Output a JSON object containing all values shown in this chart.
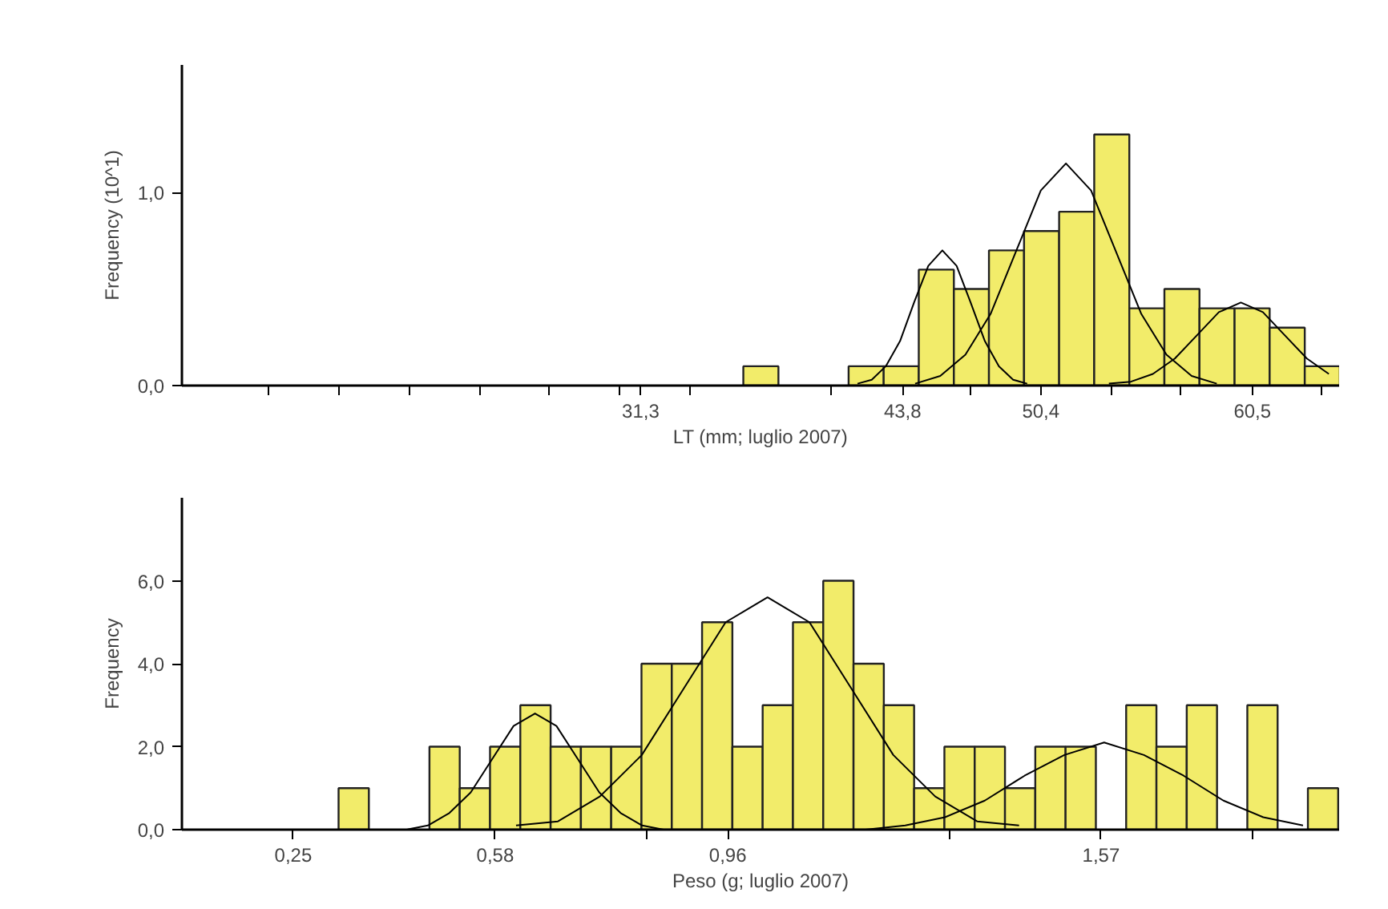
{
  "chart_data": [
    {
      "type": "histogram",
      "xlabel": "LT (mm; luglio 2007)",
      "ylabel": "Frequency (10^1)",
      "color": "#f2ec6a",
      "bins": [
        36.2,
        37.875,
        39.55,
        41.225,
        42.9,
        44.575,
        46.25,
        47.925,
        49.6,
        51.275,
        52.95,
        54.625,
        56.3,
        57.975,
        59.65,
        61.325,
        63.0,
        64.675
      ],
      "values": [
        0.1,
        0,
        0,
        0.1,
        0.1,
        0.6,
        0.5,
        0.7,
        0.8,
        0.9,
        1.3,
        0.4,
        0.5,
        0.4,
        0.4,
        0.3,
        0.1
      ],
      "series": [
        {
          "type": "line",
          "color": "#000000",
          "x": [
            41.65,
            42.33,
            43.0,
            43.68,
            44.35,
            45.03,
            45.7,
            46.38,
            47.05,
            47.73,
            48.4,
            49.08,
            49.75
          ],
          "values": [
            0.01,
            0.03,
            0.1,
            0.23,
            0.43,
            0.62,
            0.7,
            0.62,
            0.43,
            0.23,
            0.1,
            0.03,
            0.01
          ]
        },
        {
          "type": "line",
          "color": "#000000",
          "x": [
            44.4,
            45.6,
            46.8,
            48.0,
            49.2,
            50.4,
            51.6,
            52.8,
            54.0,
            55.2,
            56.4,
            57.6,
            58.8
          ],
          "values": [
            0.01,
            0.05,
            0.16,
            0.37,
            0.69,
            1.01,
            1.15,
            1.01,
            0.69,
            0.37,
            0.16,
            0.05,
            0.01
          ]
        },
        {
          "type": "line",
          "color": "#000000",
          "x": [
            53.65,
            54.7,
            55.75,
            56.8,
            57.85,
            58.9,
            59.95,
            61.0,
            62.05,
            63.1,
            64.15
          ],
          "values": [
            0.01,
            0.02,
            0.06,
            0.14,
            0.26,
            0.38,
            0.43,
            0.38,
            0.26,
            0.14,
            0.06
          ]
        }
      ],
      "xlim": [
        9.4,
        64.64
      ],
      "ylim": [
        0,
        1.66
      ],
      "xticks": [
        {
          "value": 13.55,
          "label": null
        },
        {
          "value": 16.9,
          "label": null
        },
        {
          "value": 20.25,
          "label": null
        },
        {
          "value": 23.6,
          "label": null
        },
        {
          "value": 26.95,
          "label": null
        },
        {
          "value": 30.3,
          "label": null
        },
        {
          "value": 31.3,
          "label": "31,3"
        },
        {
          "value": 33.65,
          "label": null
        },
        {
          "value": 40.35,
          "label": null
        },
        {
          "value": 43.8,
          "label": "43,8"
        },
        {
          "value": 47.05,
          "label": null
        },
        {
          "value": 50.4,
          "label": "50,4"
        },
        {
          "value": 53.75,
          "label": null
        },
        {
          "value": 57.1,
          "label": null
        },
        {
          "value": 60.5,
          "label": "60,5"
        },
        {
          "value": 63.8,
          "label": null
        }
      ],
      "yticks": [
        {
          "value": 0,
          "label": "0,0"
        },
        {
          "value": 1,
          "label": "1,0"
        }
      ],
      "grid": false
    },
    {
      "type": "histogram",
      "xlabel": "Peso (g; luglio 2007)",
      "ylabel": "Frequency",
      "color": "#f2ec6a",
      "bins": [
        0.324,
        0.3735,
        0.423,
        0.4725,
        0.522,
        0.5715,
        0.621,
        0.6705,
        0.72,
        0.7695,
        0.819,
        0.8685,
        0.918,
        0.9675,
        1.017,
        1.0665,
        1.116,
        1.1655,
        1.215,
        1.2645,
        1.314,
        1.3635,
        1.413,
        1.4625,
        1.512,
        1.5615,
        1.611,
        1.6605,
        1.71,
        1.7595,
        1.809,
        1.8585,
        1.908,
        1.9575
      ],
      "values": [
        1,
        0,
        0,
        2,
        1,
        2,
        3,
        2,
        2,
        2,
        4,
        4,
        5,
        2,
        3,
        5,
        6,
        4,
        3,
        1,
        2,
        2,
        1,
        2,
        2,
        0,
        3,
        2,
        3,
        0,
        3,
        0,
        1
      ],
      "series": [
        {
          "type": "line",
          "color": "#000000",
          "x": [
            0.435,
            0.47,
            0.505,
            0.54,
            0.575,
            0.61,
            0.645,
            0.68,
            0.715,
            0.75,
            0.785,
            0.82,
            0.855
          ],
          "values": [
            0.0,
            0.1,
            0.4,
            0.9,
            1.7,
            2.5,
            2.8,
            2.5,
            1.7,
            0.9,
            0.4,
            0.1,
            0.0
          ]
        },
        {
          "type": "line",
          "color": "#000000",
          "x": [
            0.614,
            0.6825,
            0.751,
            0.8195,
            0.888,
            0.9565,
            1.025,
            1.0935,
            1.162,
            1.2305,
            1.299,
            1.3675,
            1.436
          ],
          "values": [
            0.1,
            0.2,
            0.8,
            1.8,
            3.4,
            5.0,
            5.6,
            5.0,
            3.4,
            1.8,
            0.8,
            0.2,
            0.1
          ]
        },
        {
          "type": "line",
          "color": "#000000",
          "x": [
            1.185,
            1.25,
            1.315,
            1.38,
            1.445,
            1.51,
            1.575,
            1.64,
            1.705,
            1.77,
            1.835,
            1.9
          ],
          "values": [
            0.0,
            0.1,
            0.3,
            0.7,
            1.3,
            1.8,
            2.1,
            1.8,
            1.3,
            0.7,
            0.3,
            0.1
          ]
        }
      ],
      "xlim": [
        0.068,
        1.959
      ],
      "ylim": [
        0,
        8
      ],
      "xticks": [
        {
          "value": 0.25,
          "label": "0,25"
        },
        {
          "value": 0.58,
          "label": "0,58"
        },
        {
          "value": 0.8275,
          "label": null
        },
        {
          "value": 0.96,
          "label": "0,96"
        },
        {
          "value": 1.3225,
          "label": null
        },
        {
          "value": 1.57,
          "label": "1,57"
        },
        {
          "value": 1.8175,
          "label": null
        }
      ],
      "yticks": [
        {
          "value": 0,
          "label": "0,0"
        },
        {
          "value": 2,
          "label": "2,0"
        },
        {
          "value": 4,
          "label": "4,0"
        },
        {
          "value": 6,
          "label": "6,0"
        }
      ],
      "grid": false
    }
  ]
}
